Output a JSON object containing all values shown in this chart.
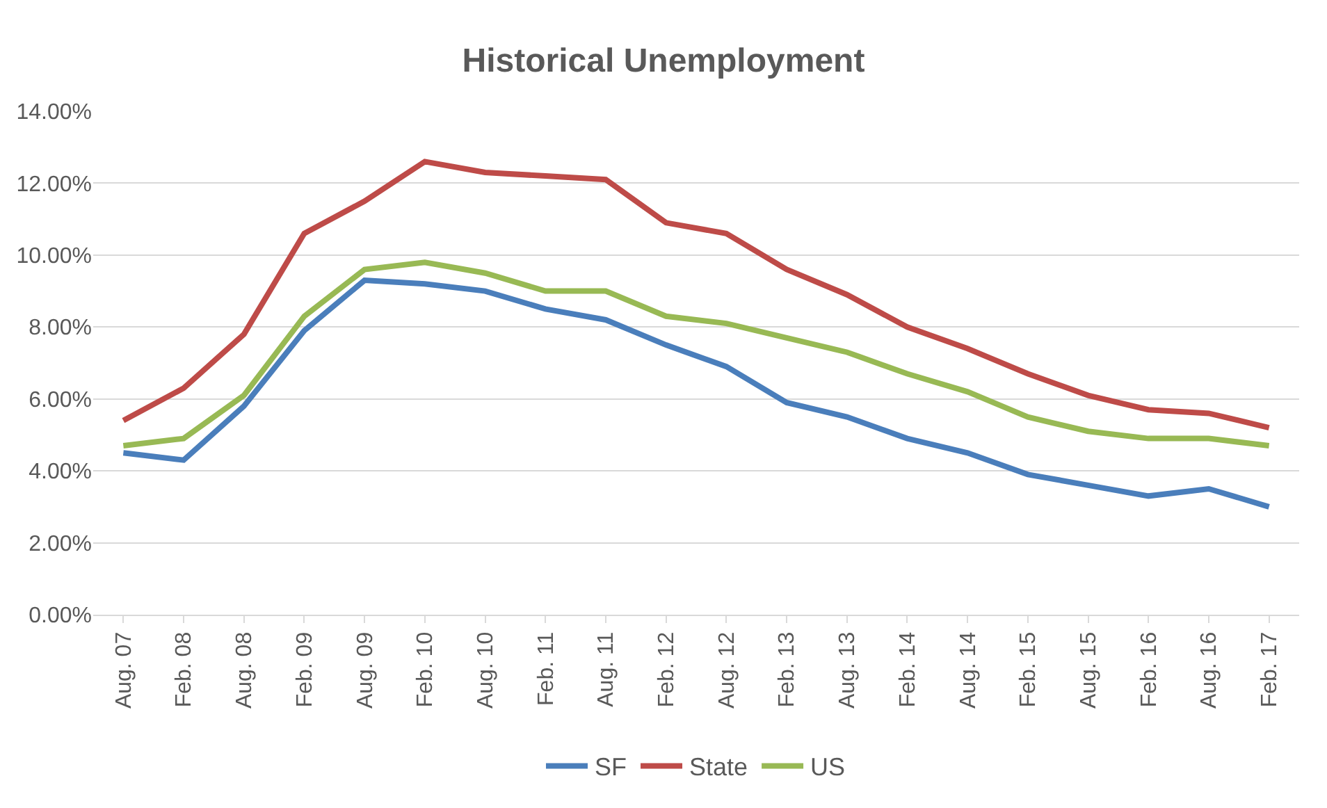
{
  "chart_data": {
    "type": "line",
    "title": "Historical Unemployment",
    "categories": [
      "Aug. 07",
      "Feb. 08",
      "Aug. 08",
      "Feb. 09",
      "Aug. 09",
      "Feb. 10",
      "Aug. 10",
      "Feb. 11",
      "Aug. 11",
      "Feb. 12",
      "Aug. 12",
      "Feb. 13",
      "Aug. 13",
      "Feb. 14",
      "Aug. 14",
      "Feb. 15",
      "Aug. 15",
      "Feb. 16",
      "Aug. 16",
      "Feb. 17"
    ],
    "series": [
      {
        "name": "SF",
        "color": "#4a7ebb",
        "values": [
          4.5,
          4.3,
          5.8,
          7.9,
          9.3,
          9.2,
          9.0,
          8.5,
          8.2,
          7.5,
          6.9,
          5.9,
          5.5,
          4.9,
          4.5,
          3.9,
          3.6,
          3.3,
          3.5,
          3.0
        ]
      },
      {
        "name": "State",
        "color": "#be4b48",
        "values": [
          5.4,
          6.3,
          7.8,
          10.6,
          11.5,
          12.6,
          12.3,
          12.2,
          12.1,
          10.9,
          10.6,
          9.6,
          8.9,
          8.0,
          7.4,
          6.7,
          6.1,
          5.7,
          5.6,
          5.2
        ]
      },
      {
        "name": "US",
        "color": "#98b954",
        "values": [
          4.7,
          4.9,
          6.1,
          8.3,
          9.6,
          9.8,
          9.5,
          9.0,
          9.0,
          8.3,
          8.1,
          7.7,
          7.3,
          6.7,
          6.2,
          5.5,
          5.1,
          4.9,
          4.9,
          4.7
        ]
      }
    ],
    "ylim": [
      0,
      14
    ],
    "yticks": [
      {
        "value": 0,
        "label": "0.00%"
      },
      {
        "value": 2,
        "label": "2.00%"
      },
      {
        "value": 4,
        "label": "4.00%"
      },
      {
        "value": 6,
        "label": "6.00%"
      },
      {
        "value": 8,
        "label": "8.00%"
      },
      {
        "value": 10,
        "label": "10.00%"
      },
      {
        "value": 12,
        "label": "12.00%"
      },
      {
        "value": 14,
        "label": "14.00%"
      }
    ],
    "grid": "y",
    "legend": "bottom",
    "marker": "none",
    "line_style": "solid"
  }
}
